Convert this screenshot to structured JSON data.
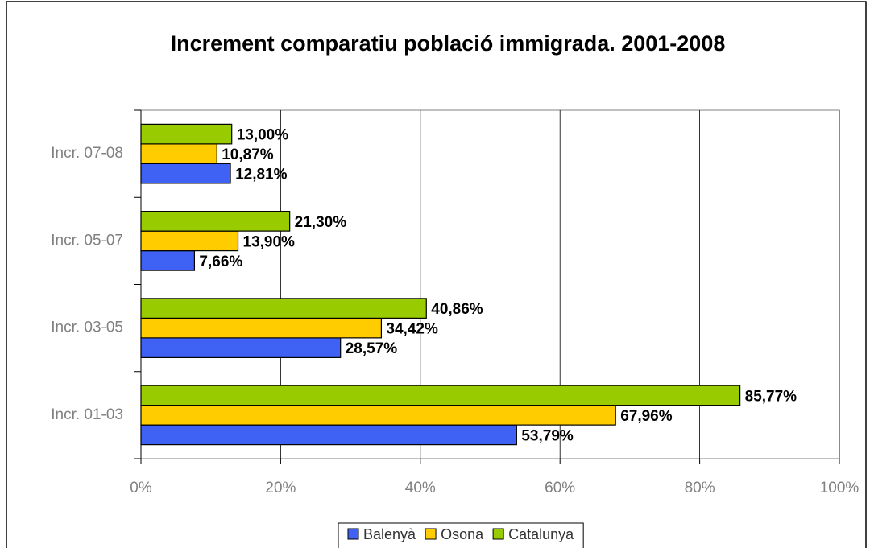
{
  "chart_data": {
    "type": "bar",
    "orientation": "horizontal",
    "title": "Increment comparatiu població immigrada. 2001-2008",
    "categories": [
      "Incr. 07-08",
      "Incr. 05-07",
      "Incr. 03-05",
      "Incr. 01-03"
    ],
    "series": [
      {
        "name": "Balenyà",
        "color": "#3f62f4",
        "values": [
          12.81,
          7.66,
          28.57,
          53.79
        ],
        "value_labels": [
          "12,81%",
          "7,66%",
          "28,57%",
          "53,79%"
        ]
      },
      {
        "name": "Osona",
        "color": "#ffcc00",
        "values": [
          10.87,
          13.9,
          34.42,
          67.96
        ],
        "value_labels": [
          "10,87%",
          "13,90%",
          "34,42%",
          "67,96%"
        ]
      },
      {
        "name": "Catalunya",
        "color": "#99cc00",
        "values": [
          13.0,
          21.3,
          40.86,
          85.77
        ],
        "value_labels": [
          "13,00%",
          "21,30%",
          "40,86%",
          "85,77%"
        ]
      }
    ],
    "xlim": [
      0,
      100
    ],
    "xticks": [
      {
        "value": 0,
        "label": "0%"
      },
      {
        "value": 20,
        "label": "20%"
      },
      {
        "value": 40,
        "label": "40%"
      },
      {
        "value": 60,
        "label": "60%"
      },
      {
        "value": 80,
        "label": "80%"
      },
      {
        "value": 100,
        "label": "100%"
      }
    ],
    "grid": true,
    "legend": "bottom"
  }
}
